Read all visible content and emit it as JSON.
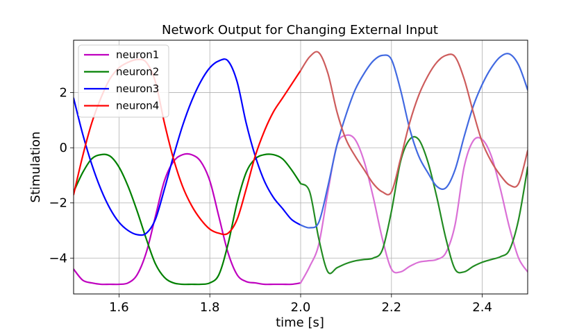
{
  "chart_data": {
    "type": "line",
    "title": "Network Output for Changing External Input",
    "xlabel": "time [s]",
    "ylabel": "Stimulation",
    "xlim": [
      1.5,
      2.5
    ],
    "ylim": [
      -5.3,
      3.9
    ],
    "xticks": [
      1.6,
      1.8,
      2.0,
      2.2,
      2.4
    ],
    "xtick_labels": [
      "1.6",
      "1.8",
      "2.0",
      "2.2",
      "2.4"
    ],
    "yticks": [
      -4,
      -2,
      0,
      2
    ],
    "ytick_labels": [
      "−4",
      "−2",
      "0",
      "2"
    ],
    "grid": true,
    "legend_position": "upper-left",
    "legend": [
      "neuron1",
      "neuron2",
      "neuron3",
      "neuron4"
    ],
    "series": [
      {
        "name": "neuron1",
        "color": "#bf00bf",
        "x": [
          1.5,
          1.52,
          1.54,
          1.56,
          1.58,
          1.6,
          1.62,
          1.64,
          1.66,
          1.68,
          1.7,
          1.72,
          1.74,
          1.76,
          1.78,
          1.8,
          1.82,
          1.84,
          1.86,
          1.88,
          1.9,
          1.92,
          1.94,
          1.96,
          1.98,
          2.0
        ],
        "y": [
          -4.4,
          -4.8,
          -4.9,
          -4.95,
          -4.95,
          -4.95,
          -4.9,
          -4.6,
          -3.8,
          -2.5,
          -1.2,
          -0.5,
          -0.25,
          -0.25,
          -0.5,
          -1.2,
          -2.5,
          -3.8,
          -4.6,
          -4.85,
          -4.9,
          -4.95,
          -4.95,
          -4.95,
          -4.95,
          -4.9
        ]
      },
      {
        "name": "neuron2",
        "color": "#008000",
        "x": [
          1.5,
          1.52,
          1.54,
          1.56,
          1.58,
          1.6,
          1.62,
          1.64,
          1.66,
          1.68,
          1.7,
          1.72,
          1.74,
          1.76,
          1.78,
          1.8,
          1.82,
          1.84,
          1.86,
          1.88,
          1.9,
          1.92,
          1.94,
          1.96,
          1.98,
          2.0
        ],
        "y": [
          -1.6,
          -0.9,
          -0.4,
          -0.25,
          -0.3,
          -0.7,
          -1.4,
          -2.3,
          -3.3,
          -4.2,
          -4.7,
          -4.9,
          -4.95,
          -4.95,
          -4.95,
          -4.9,
          -4.6,
          -3.5,
          -2.0,
          -0.9,
          -0.4,
          -0.25,
          -0.25,
          -0.4,
          -0.8,
          -1.3
        ]
      },
      {
        "name": "neuron3",
        "color": "#0000ff",
        "x": [
          1.5,
          1.52,
          1.54,
          1.56,
          1.58,
          1.6,
          1.62,
          1.64,
          1.66,
          1.68,
          1.7,
          1.72,
          1.74,
          1.76,
          1.78,
          1.8,
          1.82,
          1.84,
          1.86,
          1.88,
          1.9,
          1.92,
          1.94,
          1.96,
          1.98,
          2.0
        ],
        "y": [
          1.8,
          0.5,
          -0.6,
          -1.5,
          -2.2,
          -2.7,
          -3.0,
          -3.15,
          -3.1,
          -2.6,
          -1.5,
          -0.3,
          0.8,
          1.7,
          2.4,
          2.9,
          3.15,
          3.15,
          2.4,
          0.9,
          -0.3,
          -1.2,
          -1.8,
          -2.2,
          -2.6,
          -2.8
        ]
      },
      {
        "name": "neuron4",
        "color": "#ff0000",
        "x": [
          1.5,
          1.52,
          1.54,
          1.56,
          1.58,
          1.6,
          1.62,
          1.64,
          1.66,
          1.68,
          1.7,
          1.72,
          1.74,
          1.76,
          1.78,
          1.8,
          1.82,
          1.84,
          1.86,
          1.88,
          1.9,
          1.92,
          1.94,
          1.96,
          1.98,
          2.0
        ],
        "y": [
          -1.7,
          -0.3,
          0.9,
          1.8,
          2.5,
          2.9,
          3.1,
          3.2,
          3.1,
          2.4,
          0.9,
          -0.4,
          -1.4,
          -2.1,
          -2.6,
          -2.95,
          -3.1,
          -3.1,
          -2.6,
          -1.5,
          -0.3,
          0.6,
          1.3,
          1.8,
          2.3,
          2.8
        ]
      },
      {
        "name": "",
        "color": "#da70d6",
        "x": [
          2.0,
          2.02,
          2.04,
          2.06,
          2.08,
          2.1,
          2.12,
          2.14,
          2.16,
          2.18,
          2.2,
          2.22,
          2.24,
          2.26,
          2.28,
          2.3,
          2.32,
          2.34,
          2.36,
          2.38,
          2.4,
          2.42,
          2.44,
          2.46,
          2.48,
          2.5
        ],
        "y": [
          -4.9,
          -4.3,
          -3.5,
          -1.6,
          0.1,
          0.45,
          0.3,
          -0.5,
          -1.8,
          -3.3,
          -4.4,
          -4.5,
          -4.3,
          -4.15,
          -4.1,
          -4.05,
          -3.8,
          -2.8,
          -0.7,
          0.25,
          0.3,
          -0.3,
          -1.5,
          -2.9,
          -4.0,
          -4.5
        ]
      },
      {
        "name": "",
        "color": "#228b22",
        "x": [
          2.0,
          2.02,
          2.04,
          2.06,
          2.08,
          2.1,
          2.12,
          2.14,
          2.16,
          2.18,
          2.2,
          2.22,
          2.24,
          2.26,
          2.28,
          2.3,
          2.32,
          2.34,
          2.36,
          2.38,
          2.4,
          2.42,
          2.44,
          2.46,
          2.48,
          2.5
        ],
        "y": [
          -1.3,
          -1.6,
          -3.3,
          -4.5,
          -4.35,
          -4.2,
          -4.1,
          -4.05,
          -4.0,
          -3.7,
          -2.3,
          -0.5,
          0.3,
          0.3,
          -0.5,
          -1.8,
          -3.3,
          -4.4,
          -4.5,
          -4.3,
          -4.15,
          -4.05,
          -3.95,
          -3.7,
          -2.6,
          -0.7
        ]
      },
      {
        "name": "",
        "color": "#4169e1",
        "x": [
          2.0,
          2.02,
          2.04,
          2.06,
          2.08,
          2.1,
          2.12,
          2.14,
          2.16,
          2.18,
          2.2,
          2.22,
          2.24,
          2.26,
          2.28,
          2.3,
          2.32,
          2.34,
          2.36,
          2.38,
          2.4,
          2.42,
          2.44,
          2.46,
          2.48,
          2.5
        ],
        "y": [
          -2.8,
          -2.9,
          -2.7,
          -1.4,
          0.1,
          1.2,
          2.1,
          2.7,
          3.15,
          3.35,
          3.2,
          2.1,
          0.7,
          -0.3,
          -0.9,
          -1.4,
          -1.45,
          -0.8,
          0.4,
          1.5,
          2.3,
          2.9,
          3.3,
          3.4,
          3.0,
          2.1
        ]
      },
      {
        "name": "",
        "color": "#cd5c5c",
        "x": [
          2.0,
          2.02,
          2.04,
          2.06,
          2.08,
          2.1,
          2.12,
          2.14,
          2.16,
          2.18,
          2.2,
          2.22,
          2.24,
          2.26,
          2.28,
          2.3,
          2.32,
          2.34,
          2.36,
          2.38,
          2.4,
          2.42,
          2.44,
          2.46,
          2.48,
          2.5
        ],
        "y": [
          2.8,
          3.3,
          3.45,
          2.7,
          1.3,
          0.3,
          -0.3,
          -0.8,
          -1.3,
          -1.6,
          -1.6,
          -0.4,
          0.9,
          1.9,
          2.6,
          3.1,
          3.35,
          3.3,
          2.5,
          1.3,
          0.2,
          -0.5,
          -1.0,
          -1.35,
          -1.3,
          -0.1
        ]
      }
    ]
  }
}
